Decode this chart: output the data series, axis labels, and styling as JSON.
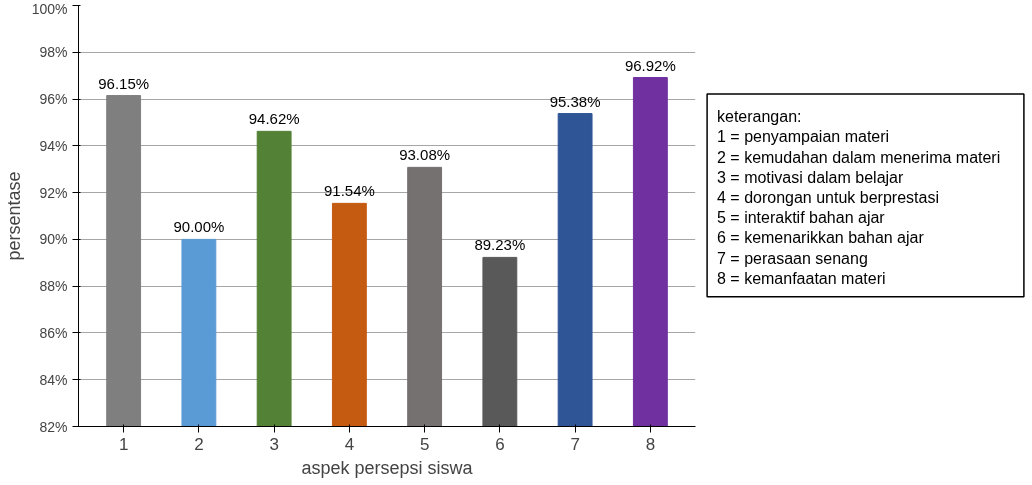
{
  "chart_data": {
    "type": "bar",
    "xlabel": "aspek persepsi siswa",
    "ylabel": "persentase",
    "categories": [
      "1",
      "2",
      "3",
      "4",
      "5",
      "6",
      "7",
      "8"
    ],
    "values": [
      96.15,
      90.0,
      94.62,
      91.54,
      93.08,
      89.23,
      95.38,
      96.92
    ],
    "value_labels": [
      "96.15%",
      "90.00%",
      "94.62%",
      "91.54%",
      "93.08%",
      "89.23%",
      "95.38%",
      "96.92%"
    ],
    "colors": [
      "#7f7f7f",
      "#5b9bd5",
      "#538135",
      "#c55a11",
      "#767171",
      "#595959",
      "#2f5597",
      "#7030a0"
    ],
    "ylim": [
      82,
      100
    ],
    "yticks": [
      {
        "value": 82,
        "label": "82%"
      },
      {
        "value": 84,
        "label": "84%"
      },
      {
        "value": 86,
        "label": "86%"
      },
      {
        "value": 88,
        "label": "88%"
      },
      {
        "value": 90,
        "label": "90%"
      },
      {
        "value": 92,
        "label": "92%"
      },
      {
        "value": 94,
        "label": "94%"
      },
      {
        "value": 96,
        "label": "96%"
      },
      {
        "value": 98,
        "label": "98%"
      },
      {
        "value": 100,
        "label": "100%"
      }
    ],
    "grid": "y",
    "annotations": [
      "keterangan:",
      "1 = penyampaian materi",
      "2 = kemudahan dalam menerima materi",
      "3 = motivasi dalam belajar",
      "4 = dorongan untuk berprestasi",
      "5 = interaktif bahan ajar",
      "6 = kemenarikkan bahan ajar",
      "7 = perasaan senang",
      "8 = kemanfaatan materi"
    ]
  }
}
